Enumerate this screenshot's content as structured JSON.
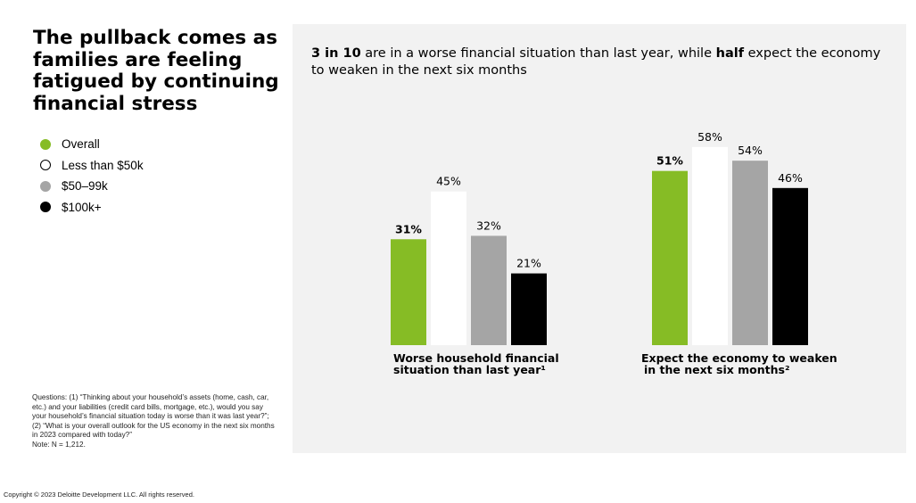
{
  "title": "The pullback comes as families are feeling fatigued by continuing financial stress",
  "subtitle": {
    "part1_bold": "3 in 10",
    "part2": " are in a worse financial situation than last year, while ",
    "part3_bold": "half",
    "part4": " expect the economy to weaken in the next six months"
  },
  "legend": [
    {
      "label": "Overall",
      "color": "#86bc25",
      "border": "#86bc25"
    },
    {
      "label": "Less than $50k",
      "color": "#ffffff",
      "border": "#000000"
    },
    {
      "label": "$50–99k",
      "color": "#a5a5a5",
      "border": "#a5a5a5"
    },
    {
      "label": "$100k+",
      "color": "#000000",
      "border": "#000000"
    }
  ],
  "footnote": "Questions: (1) “Thinking about your household’s assets (home, cash, car, etc.) and your liabilities (credit card bills, mortgage, etc.), would you say your household’s financial situation today is worse than it was last year?”; (2) “What is your overall outlook for the US economy in the next six months in 2023 compared with today?”\nNote: N = 1,212.",
  "copyright": "Copyright © 2023 Deloitte Development LLC. All rights reserved.",
  "chart_data": {
    "type": "bar",
    "categories": [
      "Worse household financial situation than last year¹",
      "Expect the economy to weaken in the next six months²"
    ],
    "category_lines": [
      [
        "Worse household financial",
        "situation than last year¹"
      ],
      [
        "Expect the economy to weaken",
        "in the next six months²"
      ]
    ],
    "series": [
      {
        "name": "Overall",
        "values": [
          31,
          51
        ],
        "color": "#86bc25"
      },
      {
        "name": "Less than $50k",
        "values": [
          45,
          58
        ],
        "color": "#ffffff"
      },
      {
        "name": "$50–99k",
        "values": [
          32,
          54
        ],
        "color": "#a5a5a5"
      },
      {
        "name": "$100k+",
        "values": [
          21,
          46
        ],
        "color": "#000000"
      }
    ],
    "value_suffix": "%",
    "bold_series": "Overall",
    "ylim": [
      0,
      60
    ]
  }
}
